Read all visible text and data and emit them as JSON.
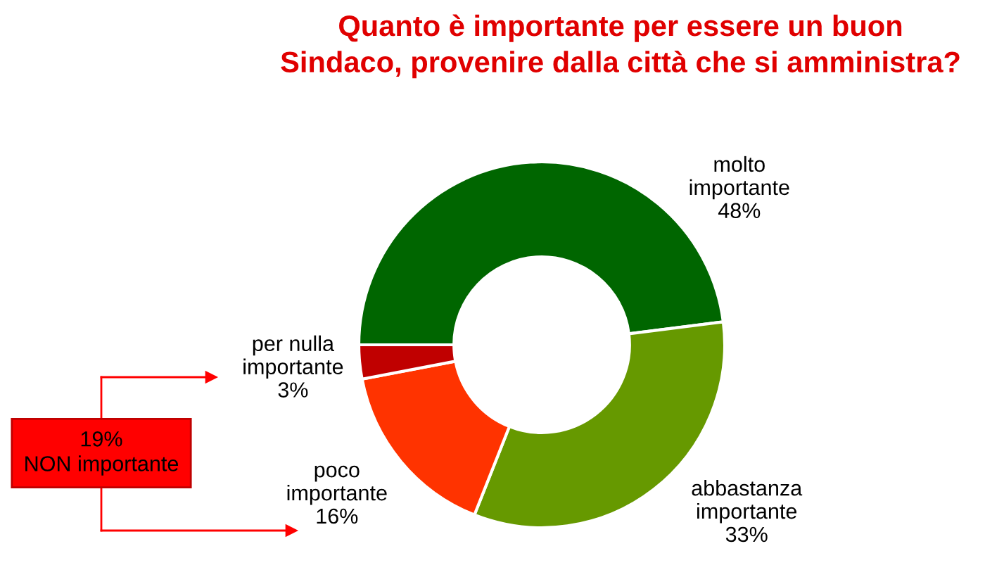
{
  "chart_data": {
    "type": "donut",
    "title": "Quanto è importante per essere un buon\nSindaco, provenire dalla città che si amministra?",
    "categories": [
      "molto\nimportante",
      "abbastanza\nimportante",
      "poco\nimportante",
      "per nulla\nimportante"
    ],
    "values": [
      48,
      33,
      16,
      3
    ],
    "colors": [
      "#006600",
      "#669900",
      "#ff3300",
      "#c00000"
    ],
    "value_labels": [
      "48%",
      "33%",
      "16%",
      "3%"
    ],
    "legend": false,
    "annotations": [
      "19%\nNON importante"
    ]
  }
}
